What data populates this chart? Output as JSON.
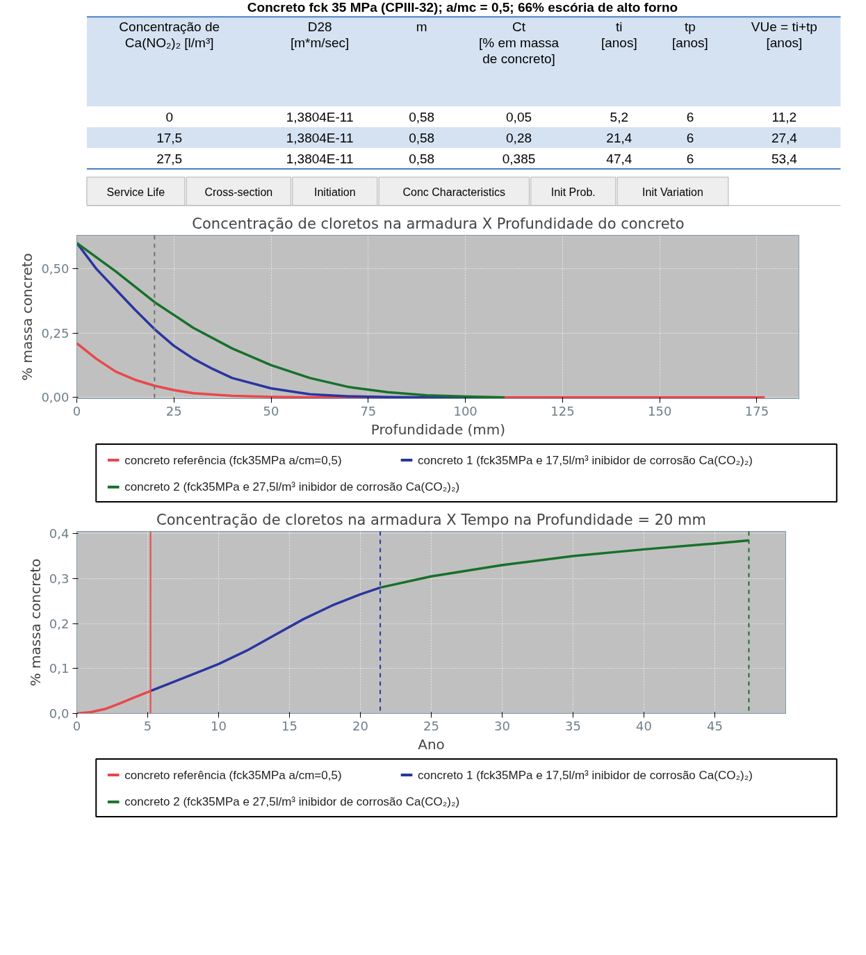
{
  "chart_data": [
    {
      "type": "other",
      "title": "Concreto fck 35 MPa (CPIII-32); a/mc = 0,5; 66% escória de alto forno",
      "categories": [
        "Concentração de\nCa(NO₂)₂ [l/m³]",
        "D28\n[m*m/sec]",
        "m",
        "Ct\n[% em massa\nde concreto]",
        "ti\n[anos]",
        "tp\n[anos]",
        "VUe = ti+tp\n[anos]"
      ],
      "annotations": [
        "0",
        "1,3804E-11",
        "0,58",
        "0,05",
        "5,2",
        "6",
        "11,2",
        "17,5",
        "1,3804E-11",
        "0,58",
        "0,28",
        "21,4",
        "6",
        "27,4",
        "27,5",
        "1,3804E-11",
        "0,58",
        "0,385",
        "47,4",
        "6",
        "53,4"
      ]
    },
    {
      "type": "other",
      "annotations": [
        "Service Life",
        "Cross-section",
        "Initiation",
        "Conc Characteristics",
        "Init Prob.",
        "Init Variation"
      ]
    },
    {
      "type": "line",
      "title": "Concentração de cloretos na armadura X Profundidade do concreto",
      "xlabel": "Profundidade (mm)",
      "ylabel": "% massa concreto",
      "xlim": [
        0,
        186
      ],
      "ylim": [
        -0.005,
        0.63
      ],
      "xticks": [
        0,
        25,
        50,
        75,
        100,
        125,
        150,
        175
      ],
      "yticks": [
        {
          "value": 0,
          "label": "0,00"
        },
        {
          "value": 0.25,
          "label": "0,25"
        },
        {
          "value": 0.5,
          "label": "0,50"
        }
      ],
      "grid": true,
      "legend": "bottom",
      "ref_lines": [
        {
          "axis": "x",
          "value": 20,
          "label": null,
          "color": "#707070",
          "line_style": "dashed"
        }
      ],
      "series": [
        {
          "name": "concreto referência (fck35MPa a/cm=0,5)",
          "color": "#e8484a",
          "x": [
            0,
            5,
            10,
            15,
            20,
            25,
            30,
            40,
            50,
            60,
            80,
            100,
            130,
            160,
            177
          ],
          "values": [
            0.21,
            0.15,
            0.1,
            0.068,
            0.045,
            0.028,
            0.016,
            0.006,
            0.002,
            0.0,
            0.0,
            0.0,
            0.0,
            0.0,
            0.0
          ]
        },
        {
          "name": "concreto  1 (fck35MPa e 17,5l/m³ inibidor de corrosão Ca(CO₂)₂)",
          "color": "#2a35a0",
          "x": [
            0,
            5,
            10,
            15,
            20,
            25,
            30,
            35,
            40,
            50,
            60,
            70,
            80,
            90,
            110
          ],
          "values": [
            0.6,
            0.5,
            0.42,
            0.34,
            0.265,
            0.2,
            0.15,
            0.11,
            0.075,
            0.035,
            0.012,
            0.004,
            0.001,
            0.0,
            0.0
          ]
        },
        {
          "name": "concreto  2 (fck35MPa e 27,5l/m³ inibidor de corrosão Ca(CO₂)₂)",
          "color": "#17702a",
          "x": [
            0,
            10,
            20,
            30,
            40,
            50,
            60,
            70,
            80,
            90,
            100,
            110
          ],
          "values": [
            0.6,
            0.49,
            0.37,
            0.27,
            0.19,
            0.125,
            0.075,
            0.04,
            0.02,
            0.008,
            0.003,
            0.0
          ]
        }
      ]
    },
    {
      "type": "line",
      "title": "Concentração de cloretos na armadura X Tempo na Profundidade = 20 mm",
      "xlabel": "Ano",
      "ylabel": "% massa concreto",
      "xlim": [
        0,
        50
      ],
      "ylim": [
        0,
        0.405
      ],
      "xticks": [
        0,
        5,
        10,
        15,
        20,
        25,
        30,
        35,
        40,
        45
      ],
      "yticks": [
        {
          "value": 0,
          "label": "0,0"
        },
        {
          "value": 0.1,
          "label": "0,1"
        },
        {
          "value": 0.2,
          "label": "0,2"
        },
        {
          "value": 0.3,
          "label": "0,3"
        },
        {
          "value": 0.4,
          "label": "0,4"
        }
      ],
      "grid": true,
      "legend": "bottom",
      "ref_lines": [
        {
          "axis": "x",
          "value": 5.2,
          "label": null,
          "color": "#e8484a",
          "line_style": "solid"
        },
        {
          "axis": "x",
          "value": 21.4,
          "label": null,
          "color": "#2a35a0",
          "line_style": "dashed"
        },
        {
          "axis": "x",
          "value": 47.4,
          "label": null,
          "color": "#17702a",
          "line_style": "dashed"
        }
      ],
      "series": [
        {
          "name": "concreto referência (fck35MPa a/cm=0,5)",
          "color": "#e8484a",
          "x": [
            0,
            1,
            2,
            3,
            4,
            5.2
          ],
          "values": [
            0.0,
            0.003,
            0.01,
            0.022,
            0.035,
            0.05
          ]
        },
        {
          "name": "concreto  1 (fck35MPa e 17,5l/m³ inibidor de corrosão Ca(CO₂)₂)",
          "color": "#2a35a0",
          "x": [
            5.2,
            8,
            10,
            12,
            14,
            16,
            18,
            20,
            21.4
          ],
          "values": [
            0.05,
            0.085,
            0.11,
            0.14,
            0.175,
            0.21,
            0.24,
            0.265,
            0.28
          ]
        },
        {
          "name": "concreto  2 (fck35MPa e 27,5l/m³ inibidor de corrosão Ca(CO₂)₂)",
          "color": "#17702a",
          "x": [
            21.4,
            25,
            30,
            35,
            40,
            45,
            47.4
          ],
          "values": [
            0.28,
            0.305,
            0.33,
            0.35,
            0.365,
            0.378,
            0.385
          ]
        }
      ]
    }
  ]
}
